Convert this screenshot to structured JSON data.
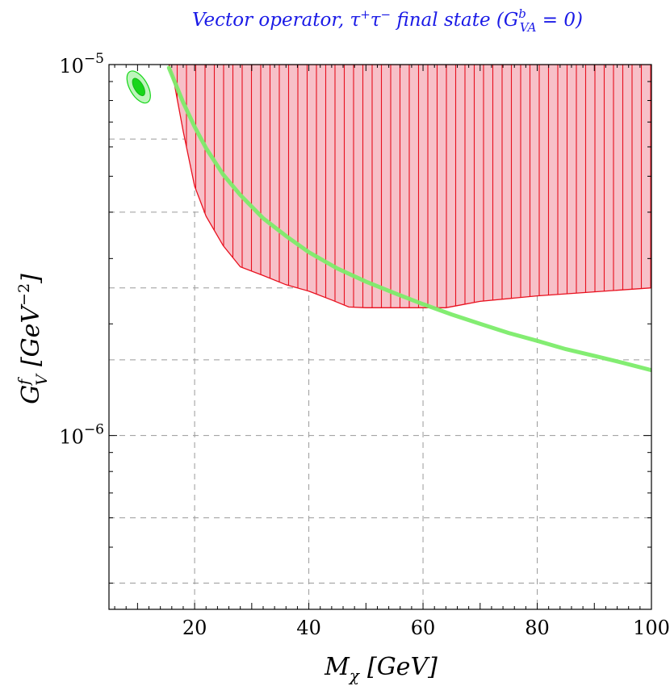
{
  "chart_data": {
    "type": "area",
    "title": "Vector operator, τ⁺τ⁻ final state (Gᵇᵛᴬ = 0)",
    "title_parts": {
      "prefix": "Vector operator, τ",
      "sup1": "+",
      "mid": "τ",
      "sup2": "−",
      "middle": " final state (",
      "g": "G",
      "g_sup": "b",
      "g_sub": "VA",
      "suffix": " = 0)"
    },
    "xlabel": {
      "main": "M",
      "sub": "χ",
      "unit": "[GeV]"
    },
    "ylabel": {
      "main": "G",
      "sup": "f",
      "sub": "V",
      "unit": "[GeV",
      "unit_sup": "−2",
      "unit_end": "]"
    },
    "xlim": [
      5,
      100
    ],
    "ylim": [
      3.4e-07,
      1e-05
    ],
    "yscale": "log",
    "x_ticks": [
      {
        "value": 20,
        "label": "20"
      },
      {
        "value": 40,
        "label": "40"
      },
      {
        "value": 60,
        "label": "60"
      },
      {
        "value": 80,
        "label": "80"
      },
      {
        "value": 100,
        "label": "100"
      }
    ],
    "y_ticks": [
      {
        "value": 1e-05,
        "base": "10",
        "exp": "−5"
      },
      {
        "value": 1e-06,
        "base": "10",
        "exp": "−6"
      }
    ],
    "grid": true,
    "grid_x": [
      20,
      40,
      60,
      80
    ],
    "grid_y": [
      4e-07,
      6e-07,
      1e-06,
      1.6e-06,
      2.5e-06,
      4e-06,
      6.3e-06
    ],
    "series": [
      {
        "name": "excluded region",
        "style": "hatched",
        "color": "#e8101e",
        "fill": "#f7c0c8",
        "x": [
          15.5,
          16.5,
          18,
          20,
          22,
          25,
          28,
          32,
          36,
          40,
          44,
          47,
          50,
          55,
          60,
          64,
          66,
          70,
          80,
          90,
          100
        ],
        "y": [
          1e-05,
          8.8e-06,
          6.6e-06,
          4.7e-06,
          3.9e-06,
          3.25e-06,
          2.85e-06,
          2.7e-06,
          2.55e-06,
          2.45e-06,
          2.32e-06,
          2.22e-06,
          2.21e-06,
          2.21e-06,
          2.21e-06,
          2.21e-06,
          2.24e-06,
          2.3e-06,
          2.38e-06,
          2.44e-06,
          2.5e-06
        ]
      },
      {
        "name": "green curve",
        "style": "line",
        "color": "#7cec6a",
        "x": [
          15.5,
          18,
          20,
          22,
          25,
          28,
          32,
          36,
          40,
          45,
          50,
          55,
          60,
          65,
          70,
          75,
          80,
          85,
          90,
          95,
          100
        ],
        "y": [
          9.8e-06,
          7.9e-06,
          6.8e-06,
          5.95e-06,
          5.05e-06,
          4.45e-06,
          3.85e-06,
          3.45e-06,
          3.12e-06,
          2.82e-06,
          2.6e-06,
          2.42e-06,
          2.26e-06,
          2.12e-06,
          2e-06,
          1.89e-06,
          1.8e-06,
          1.71e-06,
          1.64e-06,
          1.57e-06,
          1.5e-06
        ]
      },
      {
        "name": "fit contour",
        "style": "ellipse",
        "color": "#17d61a",
        "center": {
          "x": 10.2,
          "y": 8.7e-06
        }
      }
    ]
  }
}
